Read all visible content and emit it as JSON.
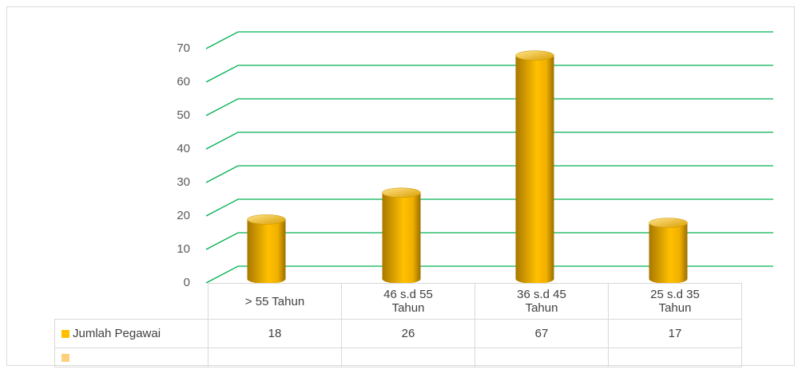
{
  "chart_data": {
    "type": "bar",
    "categories": [
      "> 55 Tahun",
      "46 s.d 55 Tahun",
      "36 s.d 45 Tahun",
      "25 s.d 35 Tahun"
    ],
    "series": [
      {
        "name": "Jumlah Pegawai",
        "color": "#ffc000",
        "values": [
          18,
          26,
          67,
          17
        ]
      },
      {
        "color": "#fcd07e",
        "values": [
          null,
          null,
          null,
          null
        ]
      }
    ],
    "ylim": [
      0,
      70
    ],
    "yticks": [
      0,
      10,
      20,
      30,
      40,
      50,
      60,
      70
    ],
    "grid": true,
    "grid_color": "#00b050"
  }
}
